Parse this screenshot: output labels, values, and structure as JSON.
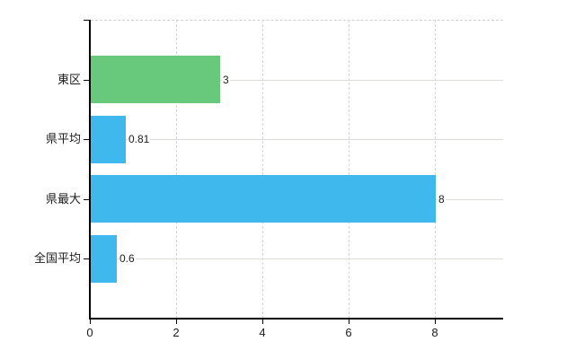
{
  "chart_data": {
    "type": "bar",
    "orientation": "horizontal",
    "title": "",
    "legend": "none",
    "categories": [
      "東区",
      "県平均",
      "県最大",
      "全国平均"
    ],
    "values": [
      3,
      0.81,
      8,
      0.6
    ],
    "value_labels": [
      "3",
      "0.81",
      "8",
      "0.6"
    ],
    "bar_colors": [
      "#68c87b",
      "#3fb8ee",
      "#3fb8ee",
      "#3fb8ee"
    ],
    "x_ticks": [
      "0",
      "2",
      "4",
      "6",
      "8"
    ],
    "x_tick_values": [
      0,
      2,
      4,
      6,
      8
    ],
    "xlim": [
      0,
      9.56
    ],
    "grid": {
      "vertical_style": "dashed",
      "horizontal_style": "solid",
      "top_border_style": "dashed"
    }
  },
  "colors": {
    "background": "#ffffff",
    "bar_green": "#68c87b",
    "bar_blue": "#3fb8ee",
    "axis": "#000000",
    "gridline_h": "#d7dcd4",
    "gridline_v": "#d6d4d8",
    "gridline_top": "#cfcfd3",
    "text": "#1c1c1c"
  }
}
